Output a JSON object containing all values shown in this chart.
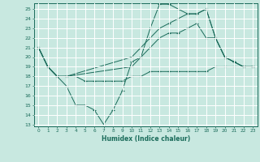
{
  "title": "",
  "xlabel": "Humidex (Indice chaleur)",
  "ylabel": "",
  "xlim": [
    -0.5,
    23.5
  ],
  "ylim": [
    12.8,
    25.6
  ],
  "yticks": [
    13,
    14,
    15,
    16,
    17,
    18,
    19,
    20,
    21,
    22,
    23,
    24,
    25
  ],
  "xticks": [
    0,
    1,
    2,
    3,
    4,
    5,
    6,
    7,
    8,
    9,
    10,
    11,
    12,
    13,
    14,
    15,
    16,
    17,
    18,
    19,
    20,
    21,
    22,
    23
  ],
  "background_color": "#c8e8e0",
  "grid_color": "#ffffff",
  "line_color": "#1a6b5a",
  "lines": [
    {
      "x": [
        0,
        1,
        2,
        3,
        4,
        5,
        6,
        7,
        8,
        9,
        10,
        11,
        12,
        13,
        14,
        15,
        16,
        17,
        18,
        19,
        20,
        21,
        22,
        23
      ],
      "y": [
        21,
        19,
        18,
        17,
        15,
        15,
        14.5,
        13,
        14.5,
        16.5,
        19.5,
        20,
        23,
        25.5,
        25.5,
        25,
        24.5,
        24.5,
        25,
        22,
        20,
        19.5,
        19,
        19
      ]
    },
    {
      "x": [
        0,
        1,
        2,
        3,
        10,
        11,
        12,
        13,
        14,
        15,
        16,
        17,
        18,
        19,
        20,
        21,
        22,
        23
      ],
      "y": [
        21,
        19,
        18,
        18,
        20,
        21,
        22,
        23,
        23.5,
        24,
        24.5,
        24.5,
        25,
        22,
        20,
        19.5,
        19,
        19
      ]
    },
    {
      "x": [
        0,
        1,
        2,
        3,
        10,
        11,
        12,
        13,
        14,
        15,
        16,
        17,
        18,
        19,
        20,
        21,
        22,
        23
      ],
      "y": [
        21,
        19,
        18,
        18,
        19,
        20,
        21,
        22,
        22.5,
        22.5,
        23,
        23.5,
        22,
        22,
        20,
        19.5,
        19,
        19
      ]
    },
    {
      "x": [
        0,
        1,
        2,
        3,
        4,
        5,
        6,
        7,
        8,
        9,
        10,
        11,
        12,
        13,
        14,
        15,
        16,
        17,
        18,
        19,
        20,
        21,
        22,
        23
      ],
      "y": [
        21,
        19,
        18,
        18,
        18,
        17.5,
        17.5,
        17.5,
        17.5,
        17.5,
        18,
        18,
        18.5,
        18.5,
        18.5,
        18.5,
        18.5,
        18.5,
        18.5,
        19,
        19,
        19,
        19,
        19
      ]
    }
  ]
}
